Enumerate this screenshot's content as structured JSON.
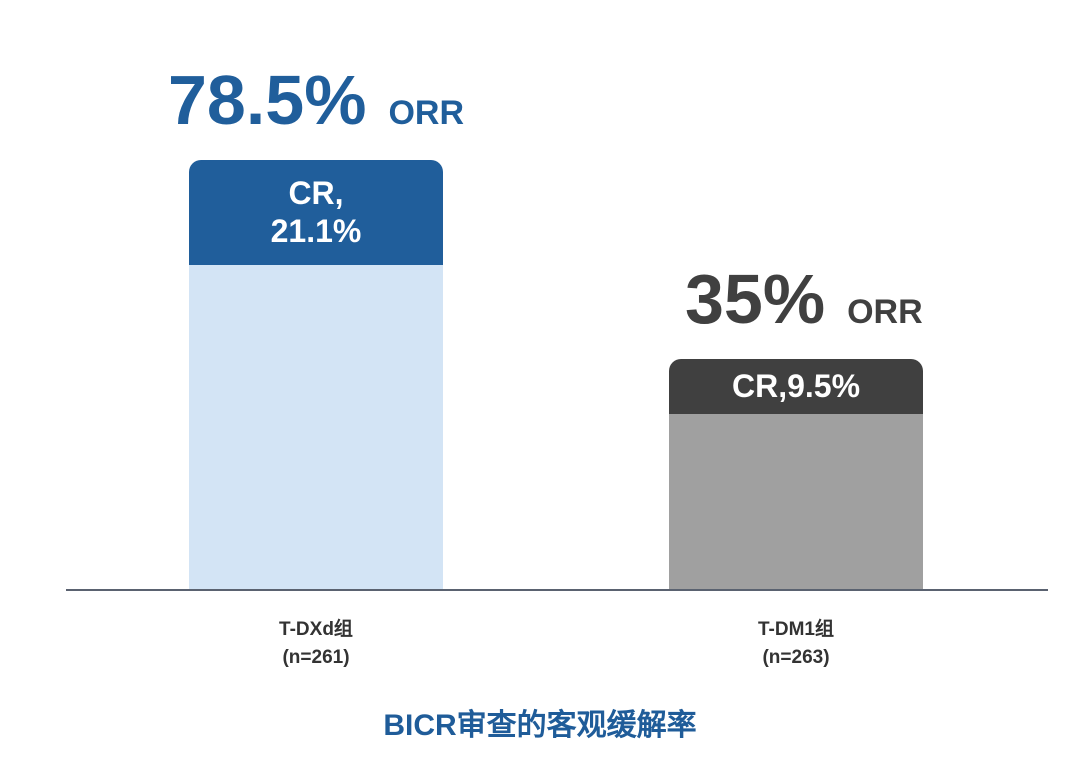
{
  "chart_data": {
    "type": "bar",
    "title": "BICR审查的客观缓解率",
    "categories": [
      "T-DXd组\n(n=261)",
      "T-DM1组\n(n=263)"
    ],
    "category_lines": [
      [
        "T-DXd组",
        "(n=261)"
      ],
      [
        "T-DM1组",
        "(n=263)"
      ]
    ],
    "series": [
      {
        "values": [
          78.5,
          35
        ],
        "labels": [
          "78.5%",
          "35%"
        ],
        "label_suffix": "ORR"
      },
      {
        "values": [
          21.1,
          9.5
        ],
        "labels": [
          "CR,\n21.1%",
          "CR,9.5%"
        ]
      }
    ],
    "grid": false,
    "legend": "none"
  },
  "colors": {
    "tdxd_cr": "#205e9b",
    "tdxd_rest": "#d3e4f5",
    "tdm1_cr": "#404040",
    "tdm1_rest": "#a0a0a0",
    "tdxd_text": "#205e9b",
    "tdm1_text": "#404040",
    "title": "#1f5c99"
  }
}
